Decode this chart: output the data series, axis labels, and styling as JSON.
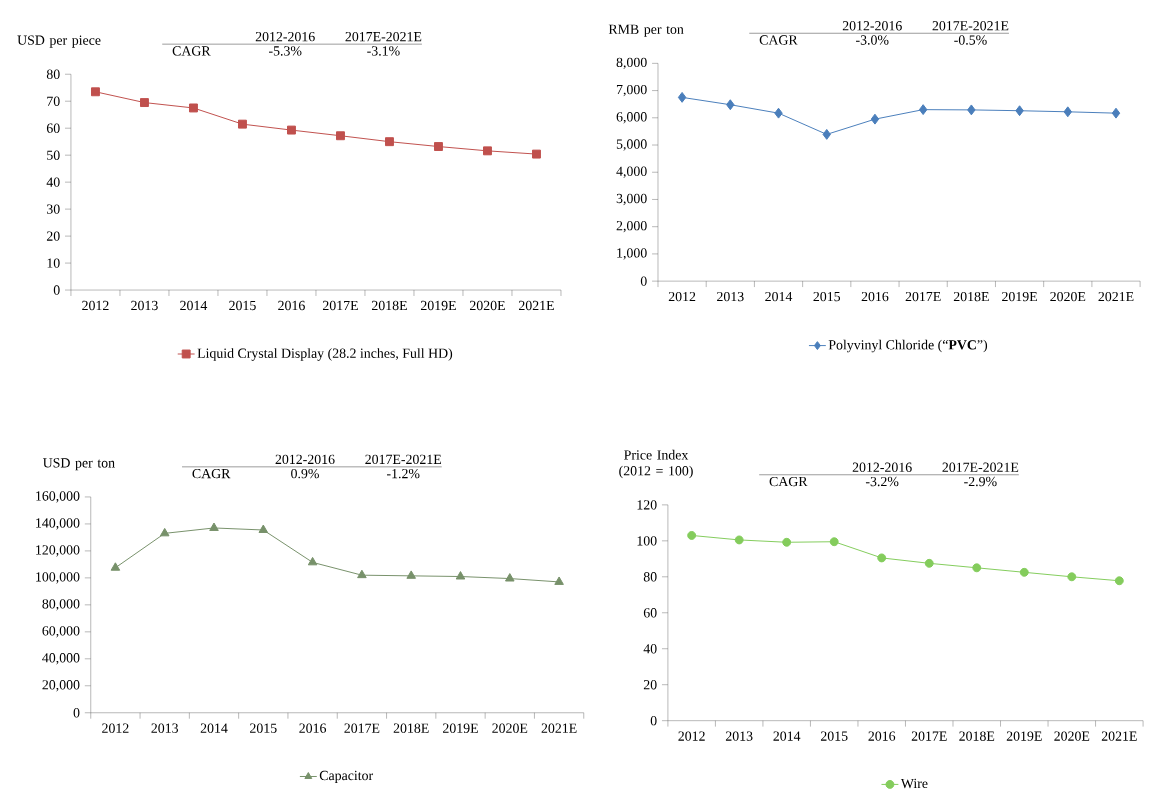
{
  "chart_data": [
    {
      "type": "line",
      "ylabel": "USD per piece",
      "categories": [
        "2012",
        "2013",
        "2014",
        "2015",
        "2016",
        "2017E",
        "2018E",
        "2019E",
        "2020E",
        "2021E"
      ],
      "series": [
        {
          "name": "Liquid Crystal Display (28.2 inches, Full HD)",
          "color": "#c0504d",
          "values": [
            73.5,
            69.5,
            67.5,
            61.5,
            59.3,
            57.2,
            55,
            53.2,
            51.6,
            50.4
          ]
        }
      ],
      "ylim": [
        0,
        80
      ],
      "yticks": [
        0,
        10,
        20,
        30,
        40,
        50,
        60,
        70,
        80
      ],
      "marker": "square",
      "legend": "bottom",
      "annotations": [
        "2012-2016",
        "2017E-2021E",
        "CAGR",
        "-5.3%",
        "-3.1%"
      ]
    },
    {
      "type": "line",
      "ylabel": "RMB per ton",
      "categories": [
        "2012",
        "2013",
        "2014",
        "2015",
        "2016",
        "2017E",
        "2018E",
        "2019E",
        "2020E",
        "2021E"
      ],
      "series": [
        {
          "name": "Polyvinyl Chloride (“**PVC**”)",
          "color": "#4a7ebb",
          "values": [
            6750,
            6480,
            6170,
            5390,
            5950,
            6300,
            6290,
            6260,
            6220,
            6170
          ]
        }
      ],
      "ylim": [
        0,
        8000
      ],
      "yticks": [
        0,
        {
          "value": 1000,
          "label": "1,000"
        },
        {
          "value": 2000,
          "label": "2,000"
        },
        {
          "value": 3000,
          "label": "3,000"
        },
        {
          "value": 4000,
          "label": "4,000"
        },
        {
          "value": 5000,
          "label": "5,000"
        },
        {
          "value": 6000,
          "label": "6,000"
        },
        {
          "value": 7000,
          "label": "7,000"
        },
        {
          "value": 8000,
          "label": "8,000"
        }
      ],
      "marker": "diamond",
      "legend": "bottom",
      "annotations": [
        "2012-2016",
        "2017E-2021E",
        "CAGR",
        "-3.0%",
        "-0.5%"
      ]
    },
    {
      "type": "line",
      "ylabel": "USD per ton",
      "categories": [
        "2012",
        "2013",
        "2014",
        "2015",
        "2016",
        "2017E",
        "2018E",
        "2019E",
        "2020E",
        "2021E"
      ],
      "series": [
        {
          "name": "Capacitor",
          "color": "#77916a",
          "values": [
            107500,
            133000,
            137000,
            135500,
            111500,
            102000,
            101500,
            101000,
            99500,
            97000
          ]
        }
      ],
      "ylim": [
        0,
        160000
      ],
      "yticks": [
        0,
        {
          "value": 20000,
          "label": "20,000"
        },
        {
          "value": 40000,
          "label": "40,000"
        },
        {
          "value": 60000,
          "label": "60,000"
        },
        {
          "value": 80000,
          "label": "80,000"
        },
        {
          "value": 100000,
          "label": "100,000"
        },
        {
          "value": 120000,
          "label": "120,000"
        },
        {
          "value": 140000,
          "label": "140,000"
        },
        {
          "value": 160000,
          "label": "160,000"
        }
      ],
      "marker": "triangle",
      "legend": "bottom",
      "annotations": [
        "2012-2016",
        "2017E-2021E",
        "CAGR",
        "0.9%",
        "-1.2%"
      ]
    },
    {
      "type": "line",
      "ylabel": "Price Index (2012 = 100)",
      "categories": [
        "2012",
        "2013",
        "2014",
        "2015",
        "2016",
        "2017E",
        "2018E",
        "2019E",
        "2020E",
        "2021E"
      ],
      "series": [
        {
          "name": "Wire",
          "color": "#84cc5c",
          "values": [
            103,
            100.5,
            99.2,
            99.5,
            90.5,
            87.5,
            85,
            82.5,
            80,
            77.8
          ]
        }
      ],
      "ylim": [
        0,
        120
      ],
      "yticks": [
        0,
        20,
        40,
        60,
        80,
        100,
        120
      ],
      "marker": "circle",
      "legend": "bottom",
      "annotations": [
        "2012-2016",
        "2017E-2021E",
        "CAGR",
        "-3.2%",
        "-2.9%"
      ]
    }
  ]
}
